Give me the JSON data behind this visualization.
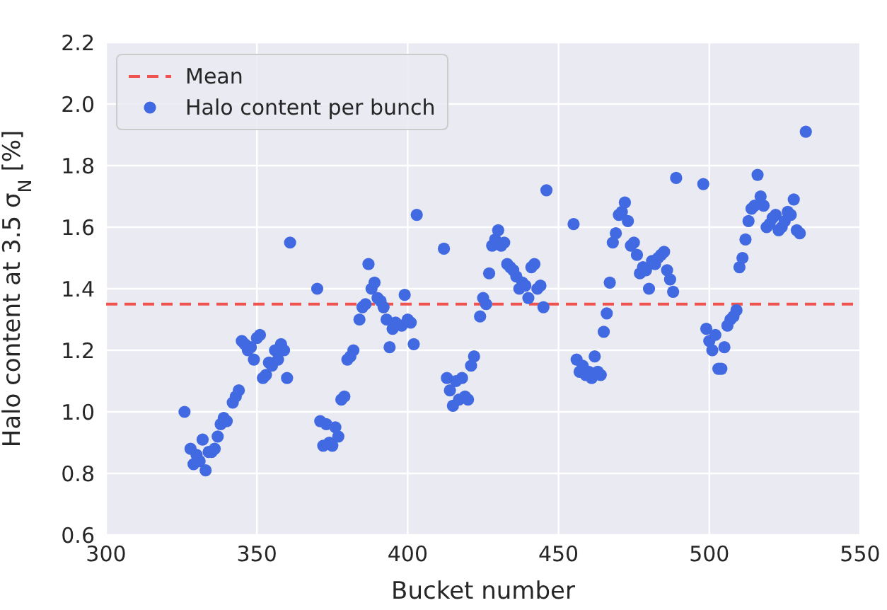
{
  "chart_data": {
    "type": "scatter",
    "xlabel": "Bucket number",
    "ylabel": "Halo content at 3.5 σ$_{N}$ [%]",
    "xlim": [
      300,
      550
    ],
    "xticks": [
      300,
      350,
      400,
      450,
      500,
      550
    ],
    "ylim": [
      0.6,
      2.2
    ],
    "yticks": [
      0.6,
      0.8,
      {
        "value": 1,
        "label": "1.0"
      },
      1.2,
      1.4,
      1.6,
      1.8,
      {
        "value": 2,
        "label": "2.0"
      },
      2.2
    ],
    "grid": true,
    "legend": "top left",
    "marker": "circle",
    "ref_lines": [
      {
        "axis": "y",
        "value": 1.35,
        "label": "Mean",
        "color": "#ef5350",
        "line_style": "dashed"
      }
    ],
    "series": [
      {
        "name": "Halo content per bunch",
        "color": "#4169e1",
        "x": [
          326,
          328,
          329,
          330,
          331,
          332,
          333,
          334,
          335,
          336,
          337,
          338,
          339,
          340,
          342,
          343,
          344,
          345,
          346,
          347,
          348,
          349,
          350,
          351,
          352,
          353,
          354,
          355,
          356,
          357,
          358,
          359,
          360,
          361,
          370,
          371,
          372,
          373,
          374,
          375,
          376,
          377,
          378,
          379,
          380,
          381,
          382,
          384,
          385,
          386,
          387,
          388,
          389,
          390,
          391,
          392,
          393,
          394,
          395,
          396,
          398,
          399,
          400,
          401,
          402,
          403,
          412,
          413,
          414,
          415,
          416,
          417,
          418,
          419,
          420,
          421,
          422,
          424,
          425,
          426,
          427,
          428,
          429,
          430,
          431,
          432,
          433,
          434,
          435,
          436,
          437,
          438,
          439,
          440,
          441,
          442,
          443,
          444,
          445,
          446,
          455,
          456,
          457,
          458,
          459,
          460,
          461,
          462,
          463,
          464,
          465,
          466,
          467,
          468,
          469,
          470,
          471,
          472,
          473,
          474,
          475,
          476,
          477,
          478,
          479,
          480,
          481,
          482,
          483,
          484,
          485,
          486,
          487,
          488,
          489,
          498,
          499,
          500,
          501,
          502,
          503,
          504,
          505,
          506,
          507,
          508,
          509,
          510,
          511,
          512,
          513,
          514,
          515,
          516,
          517,
          518,
          519,
          520,
          521,
          522,
          523,
          524,
          525,
          526,
          527,
          528,
          529,
          530,
          532
        ],
        "values": [
          1.0,
          0.88,
          0.83,
          0.86,
          0.84,
          0.91,
          0.81,
          0.87,
          0.87,
          0.88,
          0.92,
          0.96,
          0.98,
          0.97,
          1.03,
          1.05,
          1.07,
          1.23,
          1.22,
          1.2,
          1.21,
          1.17,
          1.24,
          1.25,
          1.11,
          1.12,
          1.16,
          1.15,
          1.2,
          1.17,
          1.22,
          1.2,
          1.11,
          1.55,
          1.4,
          0.97,
          0.89,
          0.96,
          0.9,
          0.89,
          0.95,
          0.92,
          1.04,
          1.05,
          1.17,
          1.18,
          1.2,
          1.3,
          1.34,
          1.35,
          1.48,
          1.4,
          1.42,
          1.37,
          1.36,
          1.34,
          1.3,
          1.21,
          1.27,
          1.29,
          1.28,
          1.38,
          1.3,
          1.29,
          1.22,
          1.64,
          1.53,
          1.11,
          1.07,
          1.02,
          1.1,
          1.04,
          1.11,
          1.05,
          1.04,
          1.15,
          1.18,
          1.31,
          1.37,
          1.35,
          1.45,
          1.54,
          1.56,
          1.59,
          1.54,
          1.55,
          1.48,
          1.47,
          1.46,
          1.44,
          1.4,
          1.42,
          1.41,
          1.37,
          1.47,
          1.48,
          1.4,
          1.41,
          1.34,
          1.72,
          1.61,
          1.17,
          1.13,
          1.15,
          1.12,
          1.13,
          1.11,
          1.18,
          1.13,
          1.12,
          1.26,
          1.32,
          1.42,
          1.55,
          1.58,
          1.64,
          1.65,
          1.68,
          1.62,
          1.54,
          1.55,
          1.51,
          1.45,
          1.47,
          1.46,
          1.4,
          1.49,
          1.48,
          1.5,
          1.51,
          1.52,
          1.46,
          1.43,
          1.39,
          1.76,
          1.74,
          1.27,
          1.23,
          1.2,
          1.25,
          1.14,
          1.14,
          1.21,
          1.28,
          1.3,
          1.31,
          1.33,
          1.47,
          1.5,
          1.56,
          1.62,
          1.66,
          1.67,
          1.77,
          1.7,
          1.67,
          1.6,
          1.61,
          1.63,
          1.64,
          1.59,
          1.6,
          1.62,
          1.65,
          1.64,
          1.69,
          1.59,
          1.58,
          1.91
        ]
      }
    ]
  }
}
